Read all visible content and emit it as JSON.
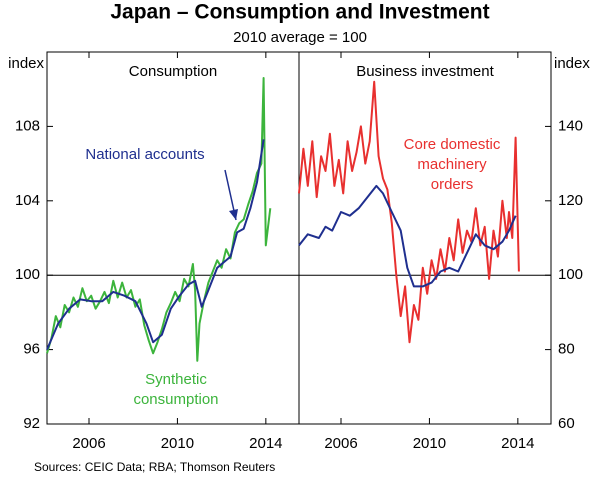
{
  "title": "Japan – Consumption and Investment",
  "subtitle": "2010 average = 100",
  "source": "Sources:  CEIC Data; RBA; Thomson Reuters",
  "chart_data": [
    {
      "type": "line",
      "title": "Consumption",
      "ylabel": "index",
      "yaxis_side": "left",
      "xlim": [
        2004.1,
        2015.5
      ],
      "xticks": [
        2006,
        2010,
        2014
      ],
      "ylim": [
        92,
        112
      ],
      "yticks": [
        92,
        96,
        100,
        104,
        108
      ],
      "refline": 100,
      "series": [
        {
          "label": [
            "Synthetic",
            "consumption"
          ],
          "color": "#3cb43c",
          "x": [
            2004.1,
            2004.3,
            2004.5,
            2004.7,
            2004.9,
            2005.1,
            2005.3,
            2005.5,
            2005.7,
            2005.9,
            2006.1,
            2006.3,
            2006.5,
            2006.7,
            2006.9,
            2007.1,
            2007.3,
            2007.5,
            2007.7,
            2007.9,
            2008.1,
            2008.3,
            2008.5,
            2008.7,
            2008.9,
            2009.1,
            2009.3,
            2009.5,
            2009.7,
            2009.9,
            2010.1,
            2010.3,
            2010.5,
            2010.7,
            2010.8,
            2010.9,
            2011.0,
            2011.2,
            2011.4,
            2011.6,
            2011.8,
            2012.0,
            2012.2,
            2012.4,
            2012.6,
            2012.8,
            2013.0,
            2013.2,
            2013.4,
            2013.6,
            2013.8,
            2013.9,
            2014.0,
            2014.2
          ],
          "values": [
            95.8,
            96.6,
            97.8,
            97.2,
            98.4,
            98.0,
            98.8,
            98.3,
            99.3,
            98.6,
            98.9,
            98.2,
            98.6,
            99.1,
            98.5,
            99.7,
            98.8,
            99.6,
            98.8,
            99.2,
            98.3,
            98.7,
            97.3,
            96.5,
            95.8,
            96.4,
            97.1,
            98.0,
            98.5,
            99.1,
            98.6,
            99.8,
            99.4,
            100.6,
            99.2,
            95.4,
            97.4,
            98.6,
            99.6,
            100.2,
            100.8,
            100.4,
            101.4,
            100.9,
            102.3,
            102.8,
            103.0,
            103.8,
            104.5,
            105.5,
            106.0,
            110.6,
            101.6,
            103.6
          ]
        },
        {
          "label": [
            "National accounts"
          ],
          "color": "#1f2f8f",
          "x": [
            2004.1,
            2004.6,
            2005.1,
            2005.6,
            2006.1,
            2006.6,
            2007.1,
            2007.6,
            2008.1,
            2008.6,
            2008.9,
            2009.3,
            2009.7,
            2010.1,
            2010.5,
            2010.8,
            2011.1,
            2011.4,
            2011.8,
            2012.1,
            2012.4,
            2012.7,
            2013.0,
            2013.3,
            2013.6,
            2013.9
          ],
          "values": [
            96.0,
            97.4,
            98.2,
            98.7,
            98.6,
            98.6,
            99.1,
            98.9,
            98.6,
            97.4,
            96.4,
            96.8,
            98.2,
            98.9,
            99.5,
            99.7,
            98.3,
            99.2,
            100.4,
            100.7,
            101.0,
            102.3,
            102.5,
            103.6,
            105.0,
            107.3
          ]
        }
      ]
    },
    {
      "type": "line",
      "title": "Business investment",
      "ylabel": "index",
      "yaxis_side": "right",
      "xlim": [
        2004.1,
        2015.5
      ],
      "xticks": [
        2006,
        2010,
        2014
      ],
      "ylim": [
        60,
        160
      ],
      "yticks": [
        60,
        80,
        100,
        120,
        140
      ],
      "refline": 100,
      "series": [
        {
          "label": [
            "Core domestic",
            "machinery",
            "orders"
          ],
          "color": "#e8302f",
          "x": [
            2004.1,
            2004.3,
            2004.5,
            2004.7,
            2004.9,
            2005.1,
            2005.3,
            2005.5,
            2005.7,
            2005.9,
            2006.1,
            2006.3,
            2006.5,
            2006.7,
            2006.9,
            2007.1,
            2007.3,
            2007.5,
            2007.7,
            2007.9,
            2008.1,
            2008.3,
            2008.5,
            2008.7,
            2008.9,
            2009.1,
            2009.3,
            2009.5,
            2009.7,
            2009.9,
            2010.1,
            2010.3,
            2010.5,
            2010.7,
            2010.9,
            2011.1,
            2011.3,
            2011.5,
            2011.7,
            2011.9,
            2012.1,
            2012.3,
            2012.5,
            2012.7,
            2012.9,
            2013.1,
            2013.3,
            2013.5,
            2013.6,
            2013.75,
            2013.9,
            2014.05
          ],
          "values": [
            122,
            134,
            124,
            136,
            121,
            132,
            128,
            138,
            124,
            131,
            122,
            136,
            128,
            133,
            140,
            130,
            136,
            152,
            132,
            126,
            123,
            114,
            100,
            89,
            97,
            82,
            92,
            88,
            102,
            95,
            104,
            99,
            107,
            101,
            110,
            104,
            115,
            106,
            112,
            109,
            118,
            108,
            113,
            99,
            112,
            105,
            120,
            110,
            117,
            110,
            137,
            101
          ]
        },
        {
          "color": "#1f2f8f",
          "x": [
            2004.1,
            2004.5,
            2005.0,
            2005.3,
            2005.6,
            2006.0,
            2006.4,
            2006.8,
            2007.2,
            2007.6,
            2007.9,
            2008.3,
            2008.7,
            2009.0,
            2009.3,
            2009.7,
            2010.1,
            2010.5,
            2010.9,
            2011.3,
            2011.7,
            2012.1,
            2012.5,
            2012.9,
            2013.3,
            2013.6,
            2013.9
          ],
          "values": [
            108,
            111,
            110,
            113,
            112,
            117,
            116,
            118,
            121,
            124,
            122,
            117,
            112,
            102,
            97,
            97,
            98,
            101,
            102,
            101,
            106,
            111,
            108,
            107,
            109,
            112,
            116
          ]
        }
      ]
    }
  ]
}
